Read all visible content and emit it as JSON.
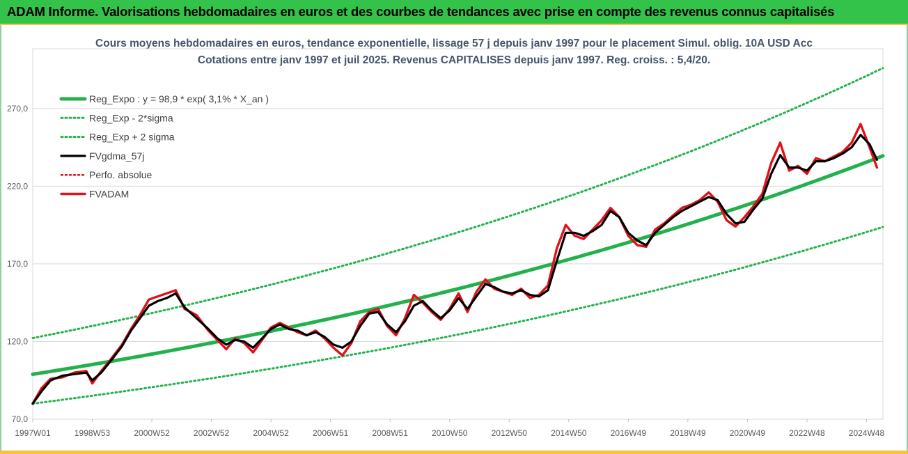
{
  "banner": {
    "title": "ADAM Informe. Valorisations hebdomadaires en euros et des courbes de tendances avec prise en compte des revenus connus capitalisés"
  },
  "colors": {
    "banner_bg": "#33c24a",
    "banner_border": "#f5c242",
    "trend": "#22b14c",
    "gdma": "#000000",
    "fvadam": "#e3101a",
    "perfo": "#e3101a",
    "title_text": "#44546a"
  },
  "chart_data": {
    "type": "line",
    "title_line1": "Cours moyens hebdomadaires en euros, tendance exponentielle, lissage 57 j depuis janv 1997 pour le placement Simul. oblig. 10A USD Acc",
    "title_line2": "Cotations entre janv 1997 et juil 2025. Revenus CAPITALISES depuis janv 1997.  Reg. croiss. : 5,4/20.",
    "xlabel": "",
    "ylabel": "",
    "x_range": [
      1997.0,
      2025.55
    ],
    "ylim": [
      70,
      295
    ],
    "y_ticks": [
      "70,0",
      "120,0",
      "170,0",
      "220,0",
      "270,0"
    ],
    "y_tick_values": [
      70,
      120,
      170,
      220,
      270
    ],
    "x_ticks": [
      "1997W01",
      "1998W53",
      "2000W52",
      "2002W52",
      "2004W52",
      "2006W51",
      "2008W51",
      "2010W50",
      "2012W50",
      "2014W50",
      "2016W49",
      "2018W49",
      "2020W49",
      "2022W48",
      "2024W48"
    ],
    "x_tick_values": [
      1997.0,
      1999.0,
      2001.0,
      2003.0,
      2005.0,
      2007.0,
      2009.0,
      2011.0,
      2013.0,
      2015.0,
      2017.0,
      2019.0,
      2021.0,
      2023.0,
      2025.0
    ],
    "grid": true,
    "legend_position": "top-left",
    "series": [
      {
        "name": "Reg_Expo : y = 98,9 * exp( 3,1% *  X_an )",
        "style": "solid-thick-green",
        "x": [
          1997.0,
          1999.0,
          2001.0,
          2003.0,
          2005.0,
          2007.0,
          2009.0,
          2011.0,
          2013.0,
          2015.0,
          2017.0,
          2019.0,
          2021.0,
          2023.0,
          2025.55
        ],
        "y": [
          98.9,
          105.2,
          111.9,
          119.1,
          126.7,
          134.8,
          143.4,
          152.6,
          162.4,
          172.8,
          183.8,
          195.6,
          208.1,
          221.4,
          239.5
        ]
      },
      {
        "name": "Reg_Exp - 2*sigma",
        "style": "dotted-green",
        "x": [
          1997.0,
          1999.0,
          2001.0,
          2003.0,
          2005.0,
          2007.0,
          2009.0,
          2011.0,
          2013.0,
          2015.0,
          2017.0,
          2019.0,
          2021.0,
          2023.0,
          2025.55
        ],
        "y": [
          80.0,
          85.1,
          90.6,
          96.3,
          102.5,
          109.1,
          116.0,
          123.4,
          131.3,
          139.8,
          148.7,
          158.2,
          168.3,
          179.1,
          193.7
        ]
      },
      {
        "name": "Reg_Exp + 2 sigma",
        "style": "dotted-green",
        "x": [
          1997.0,
          1999.0,
          2001.0,
          2003.0,
          2005.0,
          2007.0,
          2009.0,
          2011.0,
          2013.0,
          2015.0,
          2017.0,
          2019.0,
          2021.0,
          2023.0,
          2025.55
        ],
        "y": [
          122.2,
          130.0,
          138.3,
          147.2,
          156.6,
          166.6,
          177.2,
          188.6,
          200.7,
          213.5,
          227.2,
          241.7,
          257.2,
          273.6,
          296.0
        ]
      },
      {
        "name": "FVgdma_57j",
        "style": "solid-black",
        "x": [
          1997.0,
          1997.3,
          1997.6,
          1998.0,
          1998.4,
          1998.8,
          1999.0,
          1999.3,
          1999.6,
          2000.0,
          2000.3,
          2000.6,
          2000.9,
          2001.2,
          2001.5,
          2001.8,
          2002.1,
          2002.5,
          2002.9,
          2003.2,
          2003.5,
          2003.8,
          2004.1,
          2004.4,
          2004.7,
          2005.0,
          2005.3,
          2005.6,
          2005.9,
          2006.2,
          2006.5,
          2006.8,
          2007.1,
          2007.4,
          2007.7,
          2008.0,
          2008.3,
          2008.6,
          2008.9,
          2009.2,
          2009.5,
          2009.8,
          2010.1,
          2010.4,
          2010.7,
          2011.0,
          2011.3,
          2011.6,
          2011.9,
          2012.2,
          2012.5,
          2012.8,
          2013.1,
          2013.4,
          2013.7,
          2014.0,
          2014.3,
          2014.6,
          2014.9,
          2015.2,
          2015.5,
          2015.8,
          2016.1,
          2016.4,
          2016.7,
          2017.0,
          2017.3,
          2017.6,
          2017.9,
          2018.2,
          2018.5,
          2018.8,
          2019.1,
          2019.4,
          2019.7,
          2020.0,
          2020.3,
          2020.6,
          2020.9,
          2021.2,
          2021.5,
          2021.8,
          2022.1,
          2022.4,
          2022.7,
          2023.0,
          2023.3,
          2023.6,
          2023.9,
          2024.2,
          2024.5,
          2024.8,
          2025.1,
          2025.35
        ],
        "y": [
          80,
          88,
          95,
          98,
          99,
          100,
          95,
          100,
          107,
          117,
          127,
          135,
          143,
          146,
          148,
          151,
          142,
          135,
          128,
          122,
          118,
          121,
          120,
          116,
          122,
          128,
          131,
          128,
          127,
          124,
          126,
          123,
          118,
          116,
          120,
          130,
          138,
          139,
          131,
          126,
          133,
          143,
          146,
          140,
          135,
          140,
          148,
          141,
          149,
          157,
          155,
          152,
          151,
          153,
          150,
          149,
          153,
          172,
          190,
          190,
          188,
          191,
          195,
          204,
          200,
          190,
          185,
          182,
          190,
          195,
          200,
          204,
          207,
          210,
          213,
          211,
          202,
          196,
          197,
          205,
          212,
          228,
          240,
          232,
          232,
          230,
          236,
          236,
          238,
          241,
          245,
          253,
          247,
          237
        ]
      },
      {
        "name": "Perfo. absolue",
        "style": "dotted-red",
        "x": [],
        "y": []
      },
      {
        "name": "FVADAM",
        "style": "solid-thick-red",
        "x": [
          1997.0,
          1997.3,
          1997.6,
          1998.0,
          1998.4,
          1998.8,
          1999.0,
          1999.3,
          1999.6,
          2000.0,
          2000.3,
          2000.6,
          2000.9,
          2001.2,
          2001.5,
          2001.8,
          2002.1,
          2002.5,
          2002.9,
          2003.2,
          2003.5,
          2003.8,
          2004.1,
          2004.4,
          2004.7,
          2005.0,
          2005.3,
          2005.6,
          2005.9,
          2006.2,
          2006.5,
          2006.8,
          2007.1,
          2007.4,
          2007.7,
          2008.0,
          2008.3,
          2008.6,
          2008.9,
          2009.2,
          2009.5,
          2009.8,
          2010.1,
          2010.4,
          2010.7,
          2011.0,
          2011.3,
          2011.6,
          2011.9,
          2012.2,
          2012.5,
          2012.8,
          2013.1,
          2013.4,
          2013.7,
          2014.0,
          2014.3,
          2014.6,
          2014.9,
          2015.2,
          2015.5,
          2015.8,
          2016.1,
          2016.4,
          2016.7,
          2017.0,
          2017.3,
          2017.6,
          2017.9,
          2018.2,
          2018.5,
          2018.8,
          2019.1,
          2019.4,
          2019.7,
          2020.0,
          2020.3,
          2020.6,
          2020.9,
          2021.2,
          2021.5,
          2021.8,
          2022.1,
          2022.4,
          2022.7,
          2023.0,
          2023.3,
          2023.6,
          2023.9,
          2024.2,
          2024.5,
          2024.8,
          2025.1,
          2025.35
        ],
        "y": [
          80,
          90,
          96,
          97,
          100,
          101,
          93,
          101,
          108,
          118,
          128,
          137,
          147,
          149,
          151,
          153,
          141,
          137,
          127,
          121,
          115,
          122,
          119,
          113,
          121,
          129,
          132,
          129,
          126,
          124,
          127,
          122,
          116,
          111,
          119,
          133,
          139,
          141,
          130,
          124,
          135,
          150,
          145,
          139,
          134,
          141,
          151,
          139,
          152,
          160,
          154,
          152,
          150,
          154,
          148,
          150,
          156,
          180,
          195,
          188,
          186,
          192,
          198,
          206,
          200,
          188,
          182,
          181,
          192,
          196,
          201,
          206,
          208,
          211,
          216,
          210,
          198,
          194,
          200,
          207,
          215,
          235,
          248,
          230,
          233,
          228,
          238,
          236,
          239,
          242,
          248,
          260,
          245,
          232
        ]
      }
    ]
  }
}
